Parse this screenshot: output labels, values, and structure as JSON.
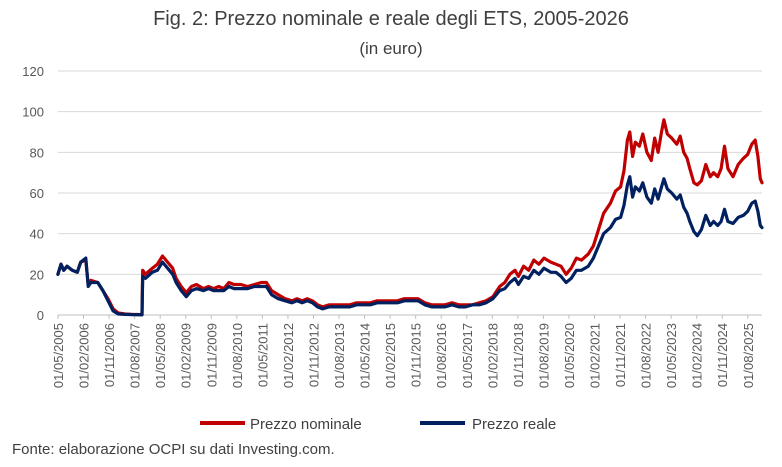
{
  "chart_data": {
    "type": "line",
    "title": "Fig. 2: Prezzo nominale e reale degli ETS, 2005-2026",
    "subtitle": "(in euro)",
    "source": "Fonte: elaborazione OCPI su dati Investing.com.",
    "ylim": [
      0,
      120
    ],
    "yticks": [
      "0",
      "20",
      "40",
      "60",
      "80",
      "100",
      "120"
    ],
    "xlim": [
      2005.333,
      2026.0
    ],
    "grid": "horizontal",
    "legend_position": "bottom",
    "xticks": [
      {
        "label": "01/05/2005",
        "x": 2005.333
      },
      {
        "label": "01/02/2006",
        "x": 2006.083
      },
      {
        "label": "01/11/2006",
        "x": 2006.833
      },
      {
        "label": "01/08/2007",
        "x": 2007.583
      },
      {
        "label": "01/05/2008",
        "x": 2008.333
      },
      {
        "label": "01/02/2009",
        "x": 2009.083
      },
      {
        "label": "01/11/2009",
        "x": 2009.833
      },
      {
        "label": "01/08/2010",
        "x": 2010.583
      },
      {
        "label": "01/05/2011",
        "x": 2011.333
      },
      {
        "label": "01/02/2012",
        "x": 2012.083
      },
      {
        "label": "01/11/2012",
        "x": 2012.833
      },
      {
        "label": "01/08/2013",
        "x": 2013.583
      },
      {
        "label": "01/05/2014",
        "x": 2014.333
      },
      {
        "label": "01/02/2015",
        "x": 2015.083
      },
      {
        "label": "01/11/2015",
        "x": 2015.833
      },
      {
        "label": "01/08/2016",
        "x": 2016.583
      },
      {
        "label": "01/05/2017",
        "x": 2017.333
      },
      {
        "label": "01/02/2018",
        "x": 2018.083
      },
      {
        "label": "01/11/2018",
        "x": 2018.833
      },
      {
        "label": "01/08/2019",
        "x": 2019.583
      },
      {
        "label": "01/05/2020",
        "x": 2020.333
      },
      {
        "label": "01/02/2021",
        "x": 2021.083
      },
      {
        "label": "01/11/2021",
        "x": 2021.833
      },
      {
        "label": "01/08/2022",
        "x": 2022.583
      },
      {
        "label": "01/05/2023",
        "x": 2023.333
      },
      {
        "label": "01/02/2024",
        "x": 2024.083
      },
      {
        "label": "01/11/2024",
        "x": 2024.833
      },
      {
        "label": "01/08/2025",
        "x": 2025.583
      }
    ],
    "series": [
      {
        "name": "Prezzo nominale",
        "color": "#c00000",
        "points": [
          [
            2005.33,
            20
          ],
          [
            2005.42,
            25
          ],
          [
            2005.5,
            22
          ],
          [
            2005.6,
            24
          ],
          [
            2005.75,
            22
          ],
          [
            2005.9,
            21
          ],
          [
            2006.0,
            26
          ],
          [
            2006.15,
            27
          ],
          [
            2006.22,
            15
          ],
          [
            2006.3,
            17
          ],
          [
            2006.5,
            16
          ],
          [
            2006.65,
            12
          ],
          [
            2006.8,
            8
          ],
          [
            2006.95,
            3
          ],
          [
            2007.1,
            1
          ],
          [
            2007.3,
            0.5
          ],
          [
            2007.5,
            0.3
          ],
          [
            2007.8,
            0.2
          ],
          [
            2007.82,
            22
          ],
          [
            2007.9,
            20
          ],
          [
            2008.1,
            23
          ],
          [
            2008.25,
            25
          ],
          [
            2008.4,
            29
          ],
          [
            2008.55,
            26
          ],
          [
            2008.7,
            23
          ],
          [
            2008.8,
            18
          ],
          [
            2008.95,
            14
          ],
          [
            2009.1,
            11
          ],
          [
            2009.25,
            14
          ],
          [
            2009.4,
            15
          ],
          [
            2009.6,
            13
          ],
          [
            2009.75,
            14
          ],
          [
            2009.9,
            13
          ],
          [
            2010.05,
            14
          ],
          [
            2010.2,
            13
          ],
          [
            2010.35,
            16
          ],
          [
            2010.5,
            15
          ],
          [
            2010.7,
            15
          ],
          [
            2010.9,
            14
          ],
          [
            2011.1,
            15
          ],
          [
            2011.3,
            16
          ],
          [
            2011.45,
            16
          ],
          [
            2011.6,
            12
          ],
          [
            2011.8,
            10
          ],
          [
            2012.0,
            8
          ],
          [
            2012.2,
            7
          ],
          [
            2012.35,
            8
          ],
          [
            2012.5,
            7
          ],
          [
            2012.65,
            8
          ],
          [
            2012.8,
            7
          ],
          [
            2012.95,
            5
          ],
          [
            2013.1,
            4
          ],
          [
            2013.3,
            5
          ],
          [
            2013.5,
            5
          ],
          [
            2013.7,
            5
          ],
          [
            2013.9,
            5
          ],
          [
            2014.1,
            6
          ],
          [
            2014.3,
            6
          ],
          [
            2014.5,
            6
          ],
          [
            2014.7,
            7
          ],
          [
            2014.9,
            7
          ],
          [
            2015.1,
            7
          ],
          [
            2015.3,
            7
          ],
          [
            2015.5,
            8
          ],
          [
            2015.7,
            8
          ],
          [
            2015.9,
            8
          ],
          [
            2016.1,
            6
          ],
          [
            2016.3,
            5
          ],
          [
            2016.5,
            5
          ],
          [
            2016.7,
            5
          ],
          [
            2016.9,
            6
          ],
          [
            2017.1,
            5
          ],
          [
            2017.3,
            5
          ],
          [
            2017.5,
            5
          ],
          [
            2017.7,
            6
          ],
          [
            2017.9,
            7
          ],
          [
            2018.1,
            9
          ],
          [
            2018.3,
            14
          ],
          [
            2018.45,
            16
          ],
          [
            2018.6,
            20
          ],
          [
            2018.75,
            22
          ],
          [
            2018.85,
            19
          ],
          [
            2019.0,
            24
          ],
          [
            2019.15,
            22
          ],
          [
            2019.3,
            27
          ],
          [
            2019.45,
            25
          ],
          [
            2019.6,
            28
          ],
          [
            2019.8,
            26
          ],
          [
            2019.95,
            25
          ],
          [
            2020.1,
            24
          ],
          [
            2020.25,
            20
          ],
          [
            2020.4,
            23
          ],
          [
            2020.55,
            28
          ],
          [
            2020.7,
            27
          ],
          [
            2020.9,
            30
          ],
          [
            2021.05,
            34
          ],
          [
            2021.2,
            42
          ],
          [
            2021.35,
            50
          ],
          [
            2021.55,
            55
          ],
          [
            2021.7,
            61
          ],
          [
            2021.85,
            63
          ],
          [
            2021.95,
            71
          ],
          [
            2022.05,
            86
          ],
          [
            2022.12,
            90
          ],
          [
            2022.2,
            78
          ],
          [
            2022.28,
            85
          ],
          [
            2022.4,
            83
          ],
          [
            2022.5,
            89
          ],
          [
            2022.62,
            80
          ],
          [
            2022.75,
            76
          ],
          [
            2022.85,
            87
          ],
          [
            2022.95,
            80
          ],
          [
            2023.05,
            90
          ],
          [
            2023.12,
            96
          ],
          [
            2023.22,
            89
          ],
          [
            2023.35,
            87
          ],
          [
            2023.5,
            84
          ],
          [
            2023.6,
            88
          ],
          [
            2023.7,
            80
          ],
          [
            2023.8,
            77
          ],
          [
            2023.88,
            72
          ],
          [
            2024.0,
            65
          ],
          [
            2024.1,
            64
          ],
          [
            2024.22,
            66
          ],
          [
            2024.35,
            74
          ],
          [
            2024.48,
            68
          ],
          [
            2024.58,
            70
          ],
          [
            2024.7,
            68
          ],
          [
            2024.8,
            72
          ],
          [
            2024.9,
            83
          ],
          [
            2025.0,
            72
          ],
          [
            2025.15,
            68
          ],
          [
            2025.3,
            74
          ],
          [
            2025.45,
            77
          ],
          [
            2025.58,
            79
          ],
          [
            2025.7,
            84
          ],
          [
            2025.8,
            86
          ],
          [
            2025.88,
            78
          ],
          [
            2025.95,
            67
          ],
          [
            2026.0,
            65
          ]
        ]
      },
      {
        "name": "Prezzo reale",
        "color": "#002060",
        "points": [
          [
            2005.33,
            20
          ],
          [
            2005.42,
            25
          ],
          [
            2005.5,
            22
          ],
          [
            2005.6,
            24
          ],
          [
            2005.75,
            22
          ],
          [
            2005.9,
            21
          ],
          [
            2006.0,
            26
          ],
          [
            2006.15,
            28
          ],
          [
            2006.22,
            14
          ],
          [
            2006.3,
            16
          ],
          [
            2006.5,
            16
          ],
          [
            2006.65,
            12
          ],
          [
            2006.8,
            7
          ],
          [
            2006.95,
            2
          ],
          [
            2007.1,
            0.5
          ],
          [
            2007.3,
            0.3
          ],
          [
            2007.5,
            0.2
          ],
          [
            2007.8,
            0.1
          ],
          [
            2007.82,
            19
          ],
          [
            2007.9,
            18
          ],
          [
            2008.1,
            21
          ],
          [
            2008.25,
            22
          ],
          [
            2008.4,
            26
          ],
          [
            2008.55,
            23
          ],
          [
            2008.7,
            20
          ],
          [
            2008.8,
            16
          ],
          [
            2008.95,
            12
          ],
          [
            2009.1,
            9
          ],
          [
            2009.25,
            12
          ],
          [
            2009.4,
            13
          ],
          [
            2009.6,
            12
          ],
          [
            2009.75,
            13
          ],
          [
            2009.9,
            12
          ],
          [
            2010.05,
            12
          ],
          [
            2010.2,
            12
          ],
          [
            2010.35,
            14
          ],
          [
            2010.5,
            13
          ],
          [
            2010.7,
            13
          ],
          [
            2010.9,
            13
          ],
          [
            2011.1,
            14
          ],
          [
            2011.3,
            14
          ],
          [
            2011.45,
            14
          ],
          [
            2011.6,
            10
          ],
          [
            2011.8,
            8
          ],
          [
            2012.0,
            7
          ],
          [
            2012.2,
            6
          ],
          [
            2012.35,
            7
          ],
          [
            2012.5,
            6
          ],
          [
            2012.65,
            7
          ],
          [
            2012.8,
            6
          ],
          [
            2012.95,
            4
          ],
          [
            2013.1,
            3
          ],
          [
            2013.3,
            4
          ],
          [
            2013.5,
            4
          ],
          [
            2013.7,
            4
          ],
          [
            2013.9,
            4
          ],
          [
            2014.1,
            5
          ],
          [
            2014.3,
            5
          ],
          [
            2014.5,
            5
          ],
          [
            2014.7,
            6
          ],
          [
            2014.9,
            6
          ],
          [
            2015.1,
            6
          ],
          [
            2015.3,
            6
          ],
          [
            2015.5,
            7
          ],
          [
            2015.7,
            7
          ],
          [
            2015.9,
            7
          ],
          [
            2016.1,
            5
          ],
          [
            2016.3,
            4
          ],
          [
            2016.5,
            4
          ],
          [
            2016.7,
            4
          ],
          [
            2016.9,
            5
          ],
          [
            2017.1,
            4
          ],
          [
            2017.3,
            4
          ],
          [
            2017.5,
            5
          ],
          [
            2017.7,
            5
          ],
          [
            2017.9,
            6
          ],
          [
            2018.1,
            8
          ],
          [
            2018.3,
            12
          ],
          [
            2018.45,
            13
          ],
          [
            2018.6,
            16
          ],
          [
            2018.75,
            18
          ],
          [
            2018.85,
            15
          ],
          [
            2019.0,
            19
          ],
          [
            2019.15,
            18
          ],
          [
            2019.3,
            22
          ],
          [
            2019.45,
            20
          ],
          [
            2019.6,
            23
          ],
          [
            2019.8,
            21
          ],
          [
            2019.95,
            21
          ],
          [
            2020.1,
            19
          ],
          [
            2020.25,
            16
          ],
          [
            2020.4,
            18
          ],
          [
            2020.55,
            22
          ],
          [
            2020.7,
            22
          ],
          [
            2020.9,
            24
          ],
          [
            2021.05,
            28
          ],
          [
            2021.2,
            34
          ],
          [
            2021.35,
            40
          ],
          [
            2021.55,
            43
          ],
          [
            2021.7,
            47
          ],
          [
            2021.85,
            48
          ],
          [
            2021.95,
            54
          ],
          [
            2022.05,
            64
          ],
          [
            2022.12,
            68
          ],
          [
            2022.2,
            58
          ],
          [
            2022.28,
            63
          ],
          [
            2022.4,
            61
          ],
          [
            2022.5,
            65
          ],
          [
            2022.62,
            58
          ],
          [
            2022.75,
            55
          ],
          [
            2022.85,
            62
          ],
          [
            2022.95,
            57
          ],
          [
            2023.05,
            63
          ],
          [
            2023.12,
            67
          ],
          [
            2023.22,
            62
          ],
          [
            2023.35,
            60
          ],
          [
            2023.5,
            57
          ],
          [
            2023.6,
            59
          ],
          [
            2023.7,
            53
          ],
          [
            2023.8,
            50
          ],
          [
            2023.88,
            46
          ],
          [
            2024.0,
            41
          ],
          [
            2024.1,
            39
          ],
          [
            2024.22,
            42
          ],
          [
            2024.35,
            49
          ],
          [
            2024.48,
            44
          ],
          [
            2024.58,
            46
          ],
          [
            2024.7,
            44
          ],
          [
            2024.8,
            46
          ],
          [
            2024.9,
            52
          ],
          [
            2025.0,
            46
          ],
          [
            2025.15,
            45
          ],
          [
            2025.3,
            48
          ],
          [
            2025.45,
            49
          ],
          [
            2025.58,
            51
          ],
          [
            2025.7,
            55
          ],
          [
            2025.8,
            56
          ],
          [
            2025.88,
            51
          ],
          [
            2025.95,
            44
          ],
          [
            2026.0,
            43
          ]
        ]
      }
    ]
  }
}
